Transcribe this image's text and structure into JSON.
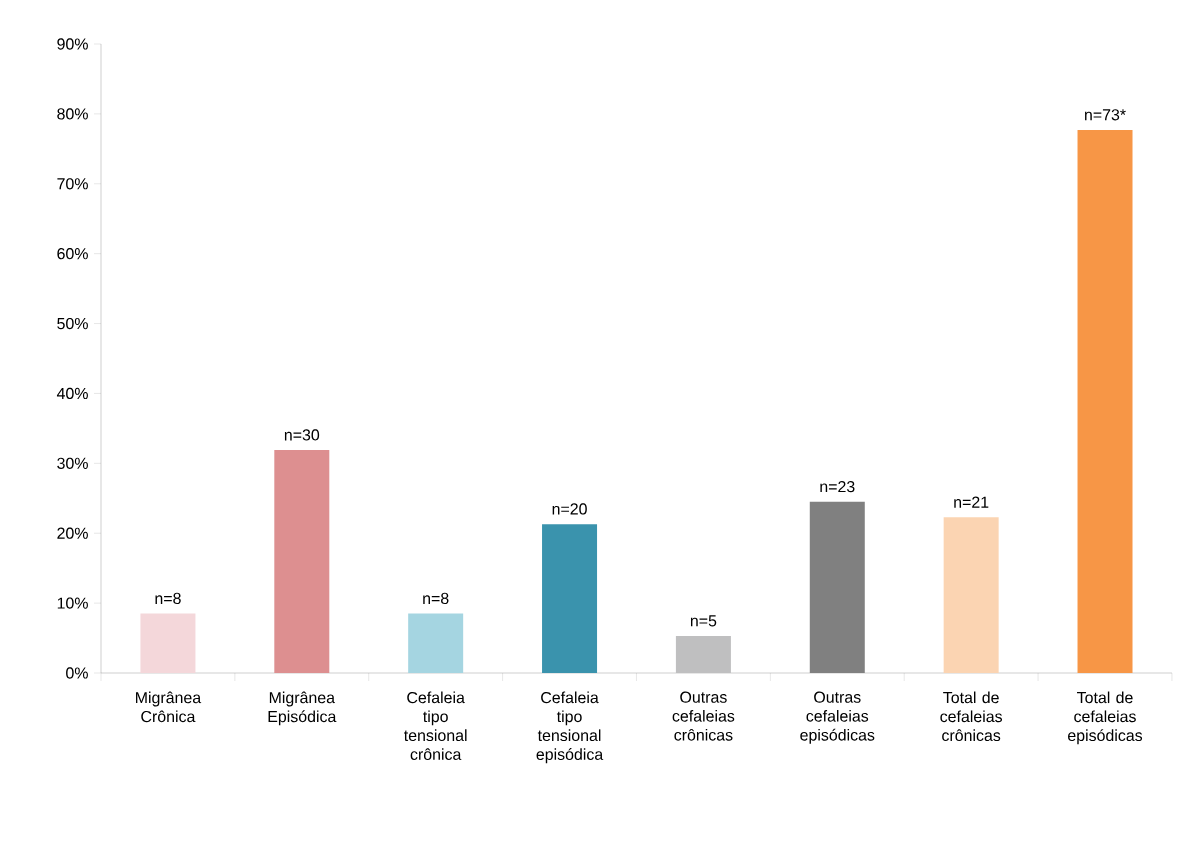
{
  "chart_data": {
    "type": "bar",
    "categories": [
      "Migrânea Crônica",
      "Migrânea Episódica",
      "Cefaleia tipo tensional crônica",
      "Cefaleia tipo tensional episódica",
      "Outras cefaleias crônicas",
      "Outras cefaleias episódicas",
      "Total de cefaleias crônicas",
      "Total de cefaleias episódicas"
    ],
    "values": [
      8.5,
      31.9,
      8.5,
      21.3,
      5.3,
      24.5,
      22.3,
      77.7
    ],
    "colors": [
      "#f4d7da",
      "#dd8f90",
      "#a5d5e1",
      "#3a93ad",
      "#bfbfc0",
      "#808080",
      "#fbd4b2",
      "#f79646"
    ],
    "annotations": [
      {
        "text": "n=8",
        "x": "Migrânea Crônica",
        "y": 8.5
      },
      {
        "text": "n=30",
        "x": "Migrânea Episódica",
        "y": 31.9
      },
      {
        "text": "n=8",
        "x": "Cefaleia tipo tensional crônica",
        "y": 8.5
      },
      {
        "text": "n=20",
        "x": "Cefaleia tipo tensional episódica",
        "y": 21.3
      },
      {
        "text": "n=5",
        "x": "Outras cefaleias crônicas",
        "y": 5.3
      },
      {
        "text": "n=23",
        "x": "Outras cefaleias episódicas",
        "y": 24.5
      },
      {
        "text": "n=21",
        "x": "Total de cefaleias crônicas",
        "y": 22.3
      },
      {
        "text": "n=73*",
        "x": "Total de cefaleias episódicas",
        "y": 77.7
      }
    ],
    "ylim": [
      0,
      90
    ],
    "yticks": [
      {
        "value": 0,
        "label": "0%"
      },
      {
        "value": 10,
        "label": "10%"
      },
      {
        "value": 20,
        "label": "20%"
      },
      {
        "value": 30,
        "label": "30%"
      },
      {
        "value": 40,
        "label": "40%"
      },
      {
        "value": 50,
        "label": "50%"
      },
      {
        "value": 60,
        "label": "60%"
      },
      {
        "value": 70,
        "label": "70%"
      },
      {
        "value": 80,
        "label": "80%"
      },
      {
        "value": 90,
        "label": "90%"
      }
    ],
    "grid": false
  }
}
